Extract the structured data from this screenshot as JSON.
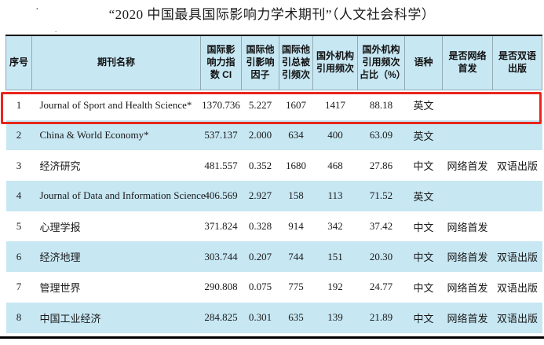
{
  "title": "“2020 中国最具国际影响力学术期刊”（人文社会科学）",
  "artifacts": {
    "dot1": "·",
    "dot2": "."
  },
  "colors": {
    "table_header_bg": "#c7e7f3",
    "row_stripe_bg": "#c7e7f3",
    "highlight_border": "#e8261d",
    "header_grid_line": "#93a9b1",
    "rule_black": "#000000"
  },
  "table": {
    "column_keys": [
      "rank",
      "journal-name",
      "ci-index",
      "intl-other-citation-impact-factor",
      "intl-other-citation-total-cites",
      "foreign-institution-cites",
      "foreign-institution-cite-pct",
      "language",
      "online-first",
      "bilingual-publication"
    ],
    "headers": [
      "序号",
      "期刊名称",
      "国际影响力指数 CI",
      "国际他引影响因子",
      "国际他引总被引频次",
      "国外机构引用频次",
      "国外机构引用频次占比（%）",
      "语种",
      "是否网络首发",
      "是否双语出版"
    ],
    "rows": [
      [
        "1",
        "Journal of Sport and Health Science*",
        "1370.736",
        "5.227",
        "1607",
        "1417",
        "88.18",
        "英文",
        "",
        ""
      ],
      [
        "2",
        "China & World Economy*",
        "537.137",
        "2.000",
        "634",
        "400",
        "63.09",
        "英文",
        "",
        ""
      ],
      [
        "3",
        "经济研究",
        "481.557",
        "0.352",
        "1680",
        "468",
        "27.86",
        "中文",
        "网络首发",
        "双语出版"
      ],
      [
        "4",
        "Journal of Data and Information Science",
        "406.569",
        "2.927",
        "158",
        "113",
        "71.52",
        "英文",
        "",
        ""
      ],
      [
        "5",
        "心理学报",
        "371.824",
        "0.328",
        "914",
        "342",
        "37.42",
        "中文",
        "网络首发",
        ""
      ],
      [
        "6",
        "经济地理",
        "303.744",
        "0.207",
        "744",
        "151",
        "20.30",
        "中文",
        "网络首发",
        "双语出版"
      ],
      [
        "7",
        "管理世界",
        "290.808",
        "0.075",
        "775",
        "192",
        "24.77",
        "中文",
        "网络首发",
        "双语出版"
      ],
      [
        "8",
        "中国工业经济",
        "284.825",
        "0.301",
        "635",
        "139",
        "21.89",
        "中文",
        "网络首发",
        "双语出版"
      ]
    ],
    "highlighted_row_rank": "1"
  }
}
